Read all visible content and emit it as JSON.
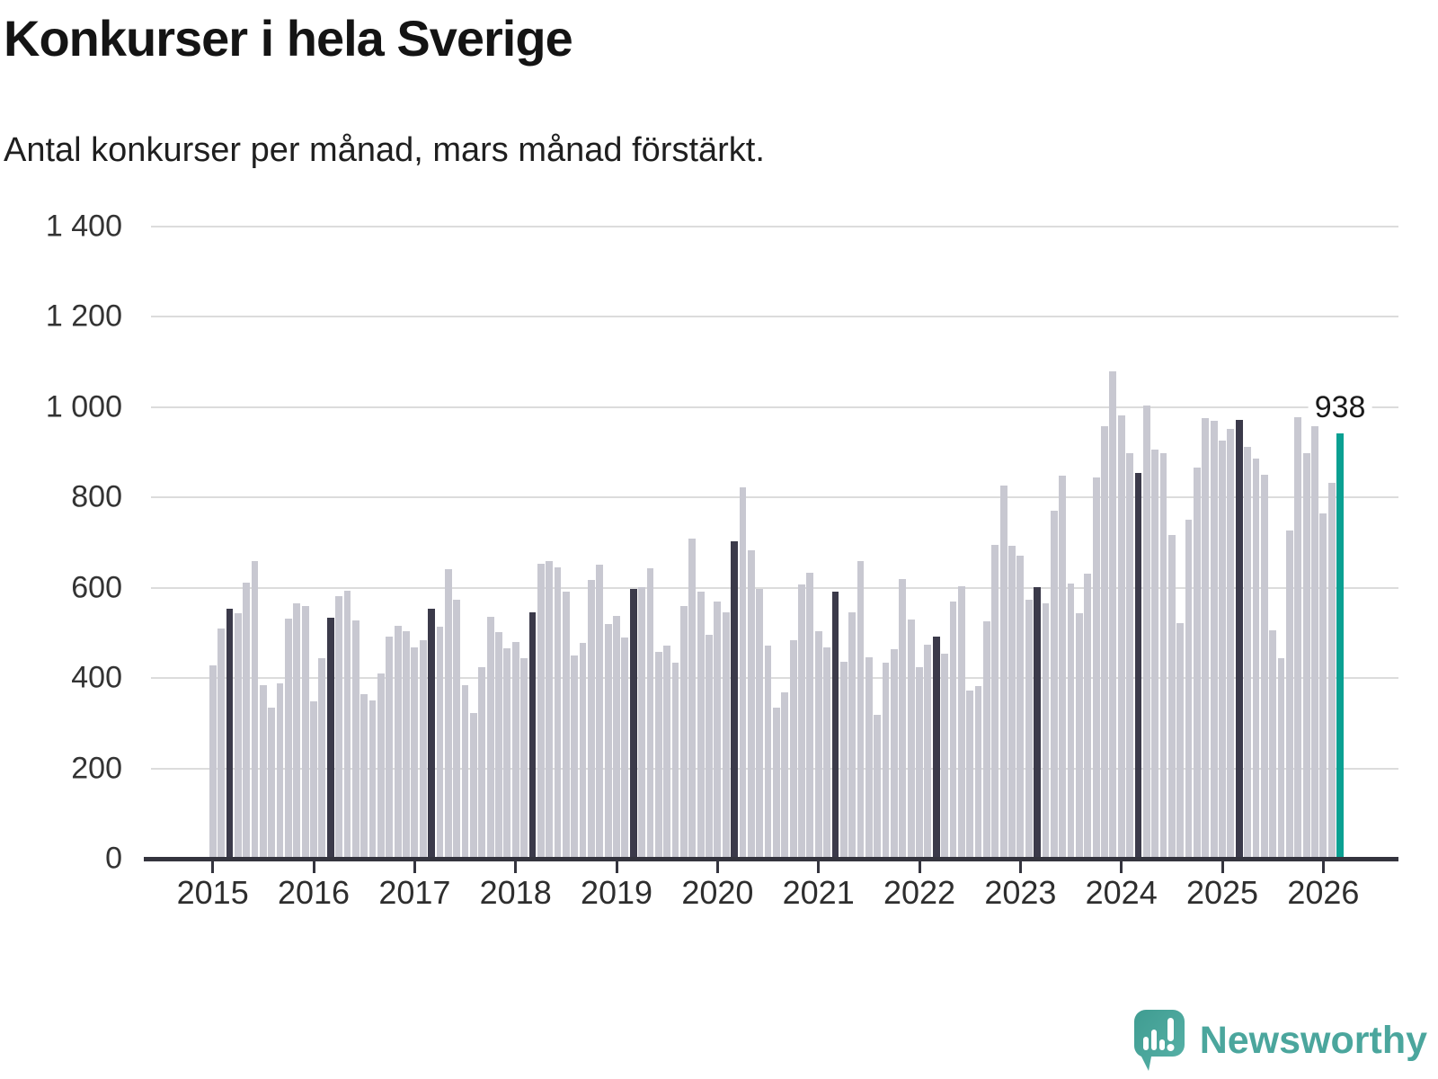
{
  "title": "Konkurser i hela Sverige",
  "subtitle": "Antal konkurser per månad, mars månad förstärkt.",
  "branding": {
    "name": "Newsworthy"
  },
  "colors": {
    "bar": "#c8c8d1",
    "march_bar": "#3b3a4a",
    "highlight_bar": "#0aa092",
    "axis": "#34343e",
    "grid": "#dcdcdc",
    "text": "#1a1a1a",
    "brand": "#4ba69d"
  },
  "chart_data": {
    "type": "bar",
    "title": "Konkurser i hela Sverige",
    "subtitle": "Antal konkurser per månad, mars månad förstärkt.",
    "xlabel": "",
    "ylabel": "",
    "ylim": [
      0,
      1400
    ],
    "grid": "horizontal",
    "yticks": [
      0,
      200,
      400,
      600,
      800,
      1000,
      1200,
      1400
    ],
    "ytick_labels": [
      "0",
      "200",
      "400",
      "600",
      "800",
      "1 000",
      "1 200",
      "1 400"
    ],
    "x_year_labels": [
      "2015",
      "2016",
      "2017",
      "2018",
      "2019",
      "2020",
      "2021",
      "2022",
      "2023",
      "2024",
      "2025",
      "2026"
    ],
    "highlight_rule": "march-months-dark, latest-month-teal",
    "last_value_label": "938",
    "series": [
      {
        "year": 2015,
        "values": [
          425,
          505,
          550,
          540,
          608,
          655,
          380,
          330,
          385,
          527,
          562,
          555
        ]
      },
      {
        "year": 2016,
        "values": [
          345,
          441,
          530,
          577,
          589,
          524,
          360,
          347,
          406,
          488,
          512,
          500
        ]
      },
      {
        "year": 2017,
        "values": [
          464,
          480,
          550,
          510,
          638,
          569,
          381,
          319,
          421,
          531,
          498,
          463
        ]
      },
      {
        "year": 2018,
        "values": [
          475,
          441,
          542,
          649,
          655,
          642,
          588,
          447,
          473,
          614,
          647,
          515
        ]
      },
      {
        "year": 2019,
        "values": [
          534,
          486,
          593,
          598,
          640,
          454,
          468,
          431,
          555,
          705,
          588,
          491
        ]
      },
      {
        "year": 2020,
        "values": [
          565,
          541,
          700,
          819,
          680,
          593,
          468,
          330,
          364,
          479,
          603,
          630
        ]
      },
      {
        "year": 2021,
        "values": [
          499,
          464,
          587,
          432,
          541,
          656,
          442,
          314,
          430,
          460,
          616,
          525
        ]
      },
      {
        "year": 2022,
        "values": [
          420,
          470,
          487,
          451,
          566,
          600,
          368,
          378,
          521,
          691,
          822,
          689
        ]
      },
      {
        "year": 2023,
        "values": [
          667,
          570,
          598,
          562,
          767,
          845,
          606,
          540,
          628,
          841,
          953,
          1075
        ]
      },
      {
        "year": 2024,
        "values": [
          977,
          895,
          850,
          1000,
          902,
          894,
          712,
          518,
          746,
          863,
          972,
          966
        ]
      },
      {
        "year": 2025,
        "values": [
          922,
          948,
          967,
          908,
          883,
          847,
          501,
          441,
          723,
          973,
          894,
          953
        ]
      },
      {
        "year": 2026,
        "values": [
          760,
          828,
          938
        ]
      }
    ]
  }
}
